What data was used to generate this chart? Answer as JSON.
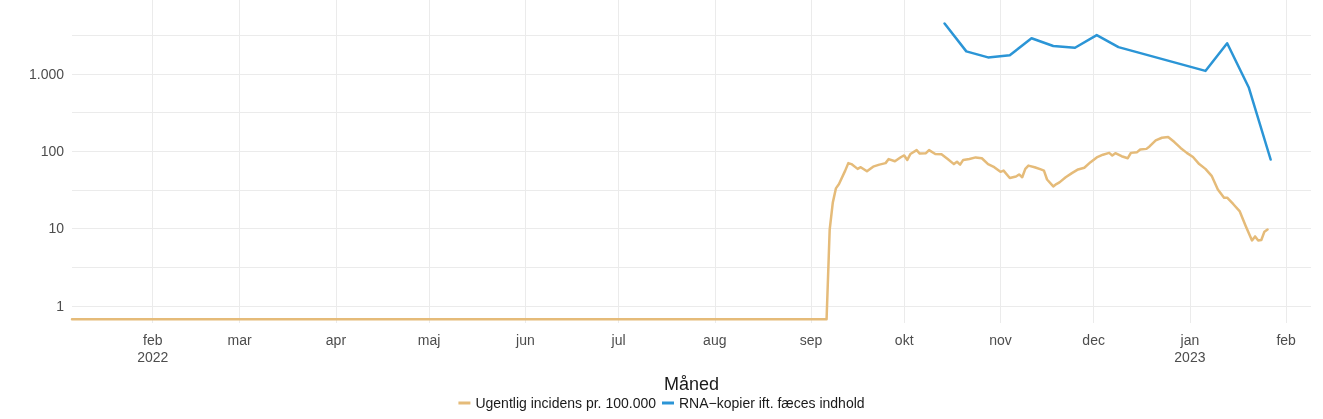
{
  "chart_data": {
    "type": "line",
    "xlabel": "Måned",
    "xlim": [
      "2022-01-06",
      "2023-02-09"
    ],
    "xticks": [
      {
        "value": "2022-02-01",
        "label": "feb\n2022"
      },
      {
        "value": "2022-03-01",
        "label": "mar"
      },
      {
        "value": "2022-04-01",
        "label": "apr"
      },
      {
        "value": "2022-05-01",
        "label": "maj"
      },
      {
        "value": "2022-06-01",
        "label": "jun"
      },
      {
        "value": "2022-07-01",
        "label": "jul"
      },
      {
        "value": "2022-08-01",
        "label": "aug"
      },
      {
        "value": "2022-09-01",
        "label": "sep"
      },
      {
        "value": "2022-10-01",
        "label": "okt"
      },
      {
        "value": "2022-11-01",
        "label": "nov"
      },
      {
        "value": "2022-12-01",
        "label": "dec"
      },
      {
        "value": "2023-01-01",
        "label": "jan\n2023"
      },
      {
        "value": "2023-02-01",
        "label": "feb"
      }
    ],
    "ylim": [
      0.6,
      9000
    ],
    "yticks": [
      1,
      {
        "value": 3.162,
        "label": null
      },
      10,
      {
        "value": 31.62,
        "label": null
      },
      100,
      {
        "value": 316.2,
        "label": null
      },
      {
        "value": 1000,
        "label": "1.000"
      },
      {
        "value": 3162,
        "label": null
      }
    ],
    "log": "y",
    "grid": true,
    "legend": "bottom",
    "line_style": "solid",
    "marker": "none",
    "series": [
      {
        "name": "Ugentlig incidens pr. 100.000",
        "color": "#e5bb79",
        "x": [
          "2022-01-06",
          "2022-09-06",
          "2022-09-07",
          "2022-09-08",
          "2022-09-09",
          "2022-09-10",
          "2022-09-12",
          "2022-09-13",
          "2022-09-14",
          "2022-09-16",
          "2022-09-17",
          "2022-09-19",
          "2022-09-21",
          "2022-09-23",
          "2022-09-25",
          "2022-09-26",
          "2022-09-28",
          "2022-09-30",
          "2022-10-01",
          "2022-10-02",
          "2022-10-03",
          "2022-10-05",
          "2022-10-06",
          "2022-10-08",
          "2022-10-09",
          "2022-10-11",
          "2022-10-13",
          "2022-10-15",
          "2022-10-17",
          "2022-10-18",
          "2022-10-19",
          "2022-10-20",
          "2022-10-22",
          "2022-10-24",
          "2022-10-26",
          "2022-10-28",
          "2022-10-30",
          "2022-11-01",
          "2022-11-02",
          "2022-11-04",
          "2022-11-06",
          "2022-11-07",
          "2022-11-08",
          "2022-11-09",
          "2022-11-10",
          "2022-11-12",
          "2022-11-14",
          "2022-11-15",
          "2022-11-16",
          "2022-11-18",
          "2022-11-19",
          "2022-11-20",
          "2022-11-22",
          "2022-11-24",
          "2022-11-26",
          "2022-11-28",
          "2022-11-30",
          "2022-12-02",
          "2022-12-04",
          "2022-12-06",
          "2022-12-07",
          "2022-12-08",
          "2022-12-10",
          "2022-12-12",
          "2022-12-13",
          "2022-12-15",
          "2022-12-16",
          "2022-12-18",
          "2022-12-19",
          "2022-12-21",
          "2022-12-23",
          "2022-12-25",
          "2022-12-27",
          "2022-12-29",
          "2022-12-31",
          "2023-01-02",
          "2023-01-04",
          "2023-01-06",
          "2023-01-08",
          "2023-01-10",
          "2023-01-12",
          "2023-01-13",
          "2023-01-15",
          "2023-01-17",
          "2023-01-19",
          "2023-01-21",
          "2023-01-22",
          "2023-01-23",
          "2023-01-24",
          "2023-01-25",
          "2023-01-26"
        ],
        "values": [
          0.67,
          0.67,
          9.7,
          21.6,
          33,
          37.5,
          56,
          70,
          68,
          59,
          62,
          55,
          63,
          67,
          70,
          79,
          74,
          84,
          88,
          77,
          92,
          103,
          93,
          94,
          103,
          92,
          91,
          79,
          68,
          73,
          67,
          77,
          79,
          83,
          81,
          68,
          62,
          54,
          56,
          45,
          47,
          50,
          46,
          59,
          65,
          62,
          58,
          56,
          43,
          35,
          37.5,
          39.5,
          46,
          52,
          58,
          61,
          72,
          83,
          90,
          95,
          88,
          94,
          86,
          81,
          95,
          97,
          105,
          107,
          115,
          138,
          149,
          152,
          131,
          110,
          95,
          84,
          68,
          59,
          48,
          32,
          25,
          25,
          20.6,
          16.8,
          10.7,
          7.0,
          7.9,
          7.0,
          7.1,
          9.1,
          9.7
        ]
      },
      {
        "name": "RNA−kopier ift. fæces indhold",
        "color": "#2b95d6",
        "x": [
          "2022-10-14",
          "2022-10-21",
          "2022-10-28",
          "2022-11-04",
          "2022-11-11",
          "2022-11-18",
          "2022-11-25",
          "2022-12-02",
          "2022-12-09",
          "2023-01-06",
          "2023-01-13",
          "2023-01-20",
          "2023-01-27"
        ],
        "values": [
          4460,
          1950,
          1630,
          1740,
          2880,
          2290,
          2170,
          3170,
          2210,
          1090,
          2480,
          660,
          78
        ]
      }
    ]
  }
}
